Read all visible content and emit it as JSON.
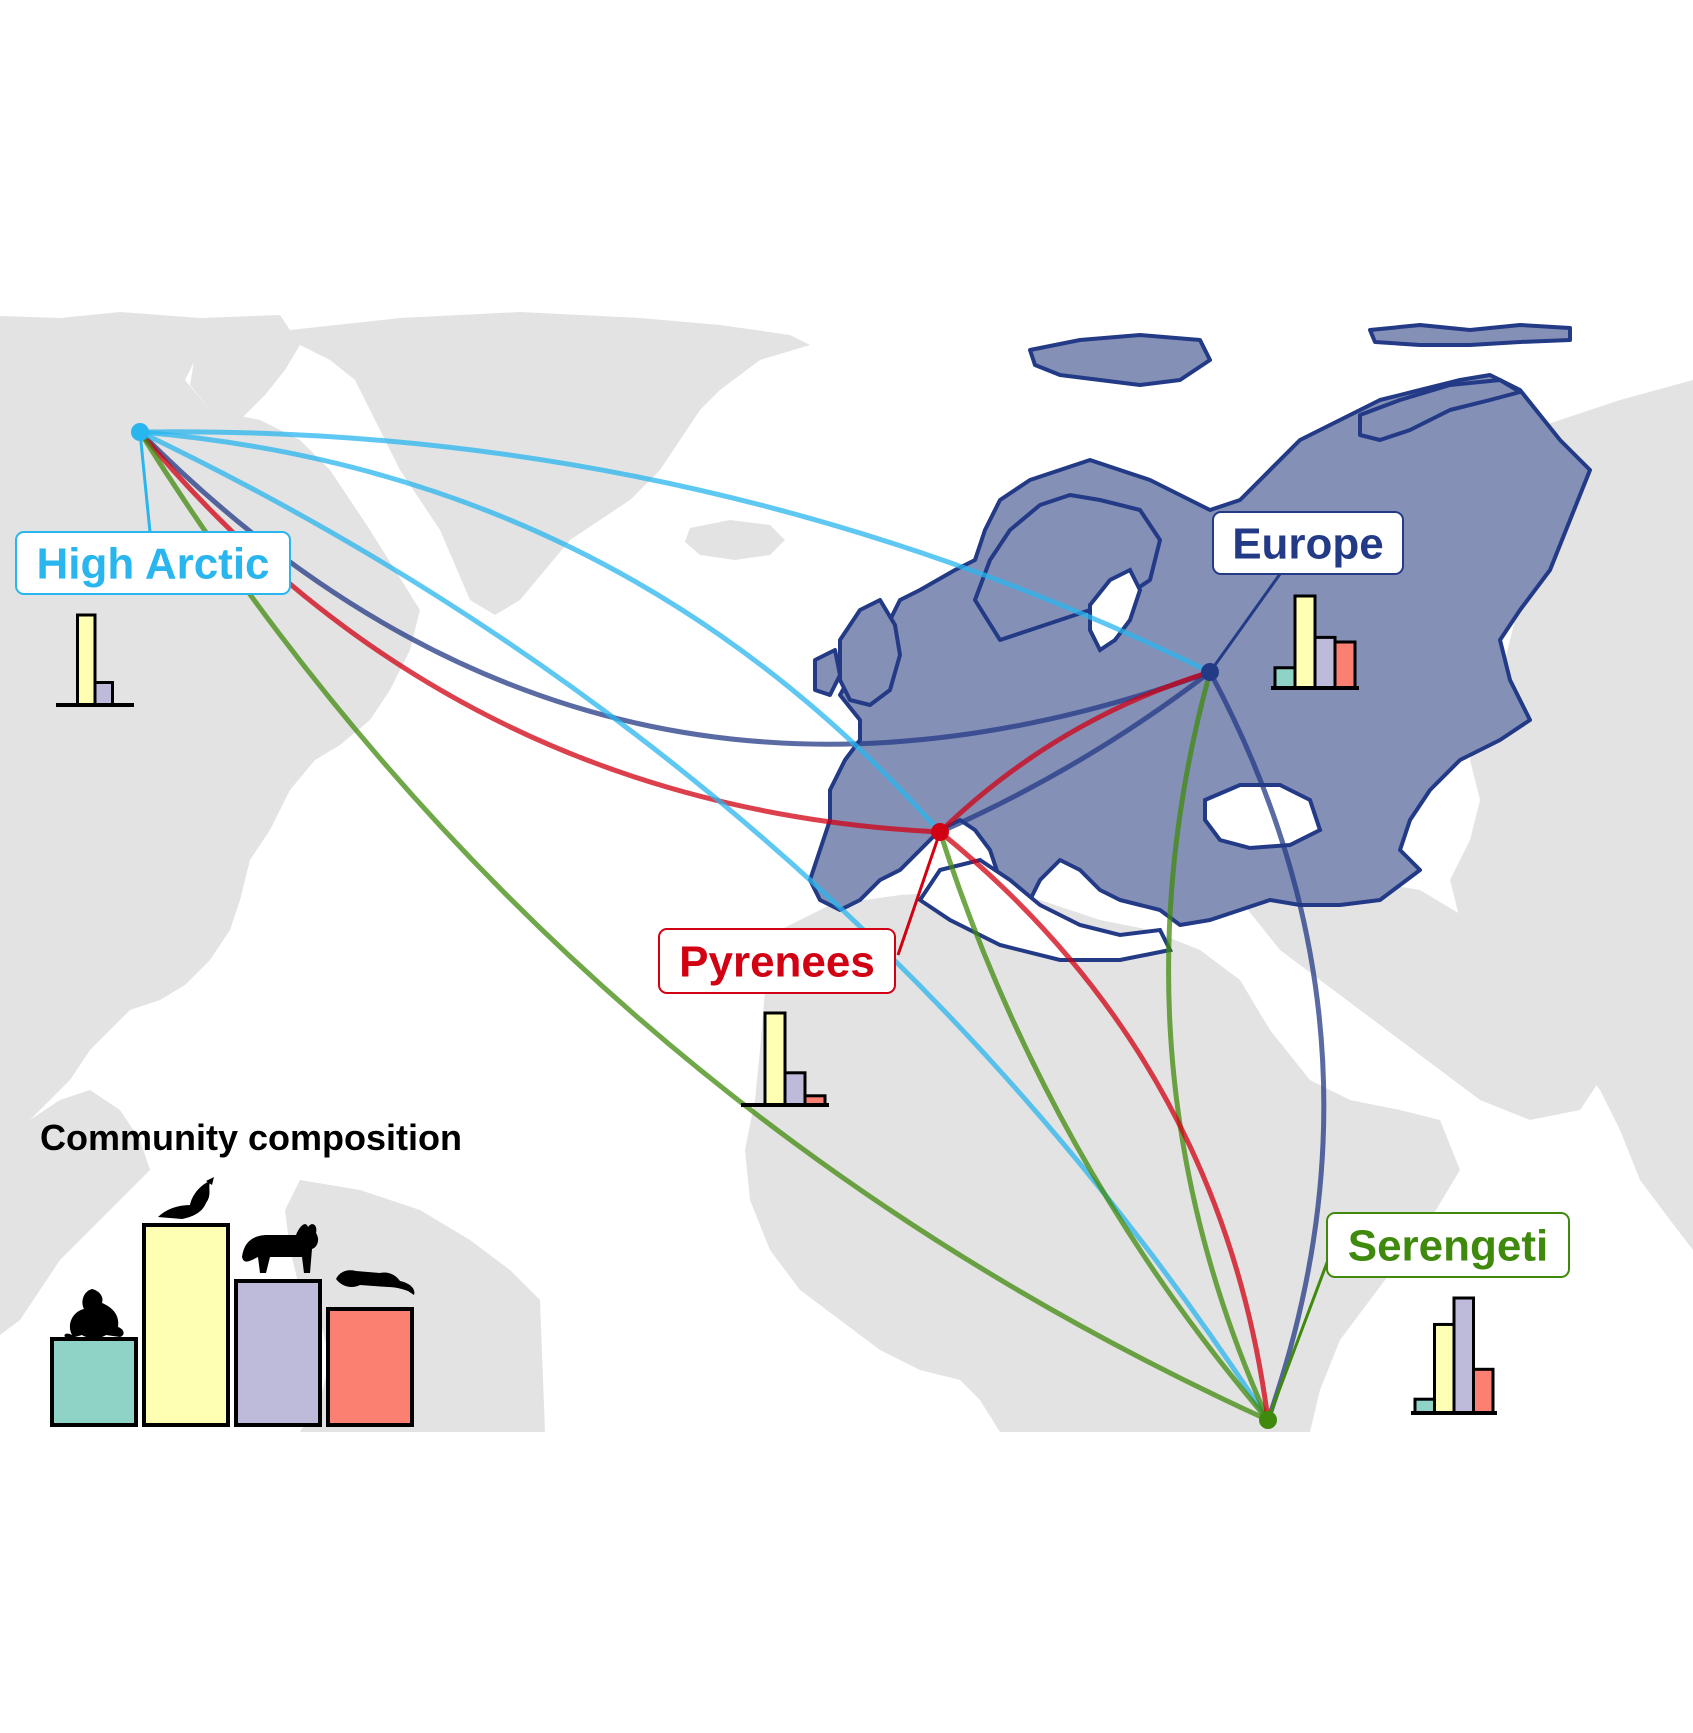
{
  "colors": {
    "land": "#e3e3e3",
    "europe_fill": "#8590b7",
    "europe_outline": "#233a86",
    "high_arctic": "#29b5ee",
    "europe": "#233a86",
    "pyrenees": "#d10012",
    "serengeti": "#3f8a0c",
    "amphibians": "#8fd3c7",
    "birds": "#ffffb3",
    "mammals": "#bebada",
    "reptiles": "#fb8072"
  },
  "sites": [
    {
      "id": "high-arctic",
      "label": "High Arctic",
      "color_key": "high_arctic",
      "composition": [
        0.0,
        1.0,
        0.25,
        0.0
      ]
    },
    {
      "id": "europe",
      "label": "Europe",
      "color_key": "europe",
      "composition": [
        0.22,
        1.0,
        0.55,
        0.5
      ]
    },
    {
      "id": "pyrenees",
      "label": "Pyrenees",
      "color_key": "pyrenees",
      "composition": [
        0.0,
        1.0,
        0.35,
        0.1
      ]
    },
    {
      "id": "serengeti",
      "label": "Serengeti",
      "color_key": "serengeti",
      "composition": [
        0.12,
        0.77,
        1.0,
        0.38
      ]
    }
  ],
  "legend": {
    "title": "Community composition",
    "groups": [
      {
        "name": "amphibians",
        "icon": "frog-icon",
        "value": 0.43
      },
      {
        "name": "birds",
        "icon": "bird-icon",
        "value": 1.0
      },
      {
        "name": "mammals",
        "icon": "lynx-icon",
        "value": 0.72
      },
      {
        "name": "reptiles",
        "icon": "lizard-icon",
        "value": 0.58
      }
    ]
  },
  "connections": [
    {
      "from": "high-arctic",
      "to": "europe",
      "color_key": "europe"
    },
    {
      "from": "high-arctic",
      "to": "pyrenees",
      "color_key": "pyrenees"
    },
    {
      "from": "high-arctic",
      "to": "serengeti",
      "color_key": "serengeti"
    },
    {
      "from": "high-arctic",
      "to": "europe",
      "color_key": "high_arctic"
    },
    {
      "from": "high-arctic",
      "to": "pyrenees",
      "color_key": "high_arctic"
    },
    {
      "from": "high-arctic",
      "to": "serengeti",
      "color_key": "high_arctic"
    },
    {
      "from": "europe",
      "to": "pyrenees",
      "color_key": "europe"
    },
    {
      "from": "europe",
      "to": "serengeti",
      "color_key": "europe"
    },
    {
      "from": "europe",
      "to": "pyrenees",
      "color_key": "pyrenees"
    },
    {
      "from": "europe",
      "to": "serengeti",
      "color_key": "serengeti"
    },
    {
      "from": "pyrenees",
      "to": "serengeti",
      "color_key": "pyrenees"
    },
    {
      "from": "pyrenees",
      "to": "serengeti",
      "color_key": "serengeti"
    }
  ]
}
